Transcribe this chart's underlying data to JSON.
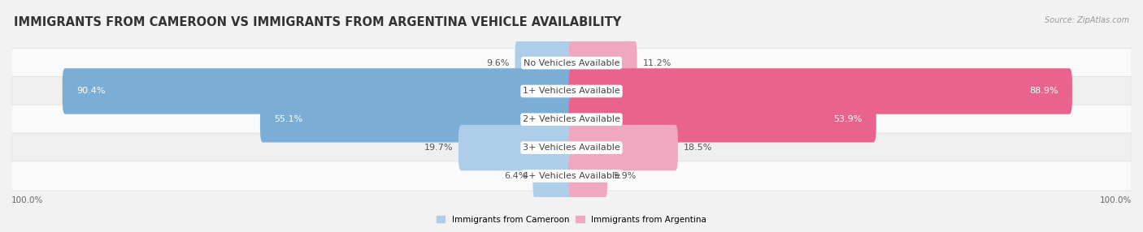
{
  "title": "IMMIGRANTS FROM CAMEROON VS IMMIGRANTS FROM ARGENTINA VEHICLE AVAILABILITY",
  "source": "Source: ZipAtlas.com",
  "categories": [
    "No Vehicles Available",
    "1+ Vehicles Available",
    "2+ Vehicles Available",
    "3+ Vehicles Available",
    "4+ Vehicles Available"
  ],
  "cameroon_values": [
    9.6,
    90.4,
    55.1,
    19.7,
    6.4
  ],
  "argentina_values": [
    11.2,
    88.9,
    53.9,
    18.5,
    5.9
  ],
  "cameroon_color_large": "#7aaed6",
  "cameroon_color_small": "#aecde8",
  "argentina_color_large": "#e8648c",
  "argentina_color_small": "#f0a8c0",
  "cameroon_label": "Immigrants from Cameroon",
  "argentina_label": "Immigrants from Argentina",
  "bar_height": 0.62,
  "background_color": "#f2f2f2",
  "row_bg_colors": [
    "#fafafa",
    "#efefef",
    "#fafafa",
    "#efefef",
    "#fafafa"
  ],
  "axis_label_left": "100.0%",
  "axis_label_right": "100.0%",
  "max_val": 100.0,
  "title_fontsize": 10.5,
  "label_fontsize": 8,
  "category_fontsize": 8,
  "large_threshold": 40
}
